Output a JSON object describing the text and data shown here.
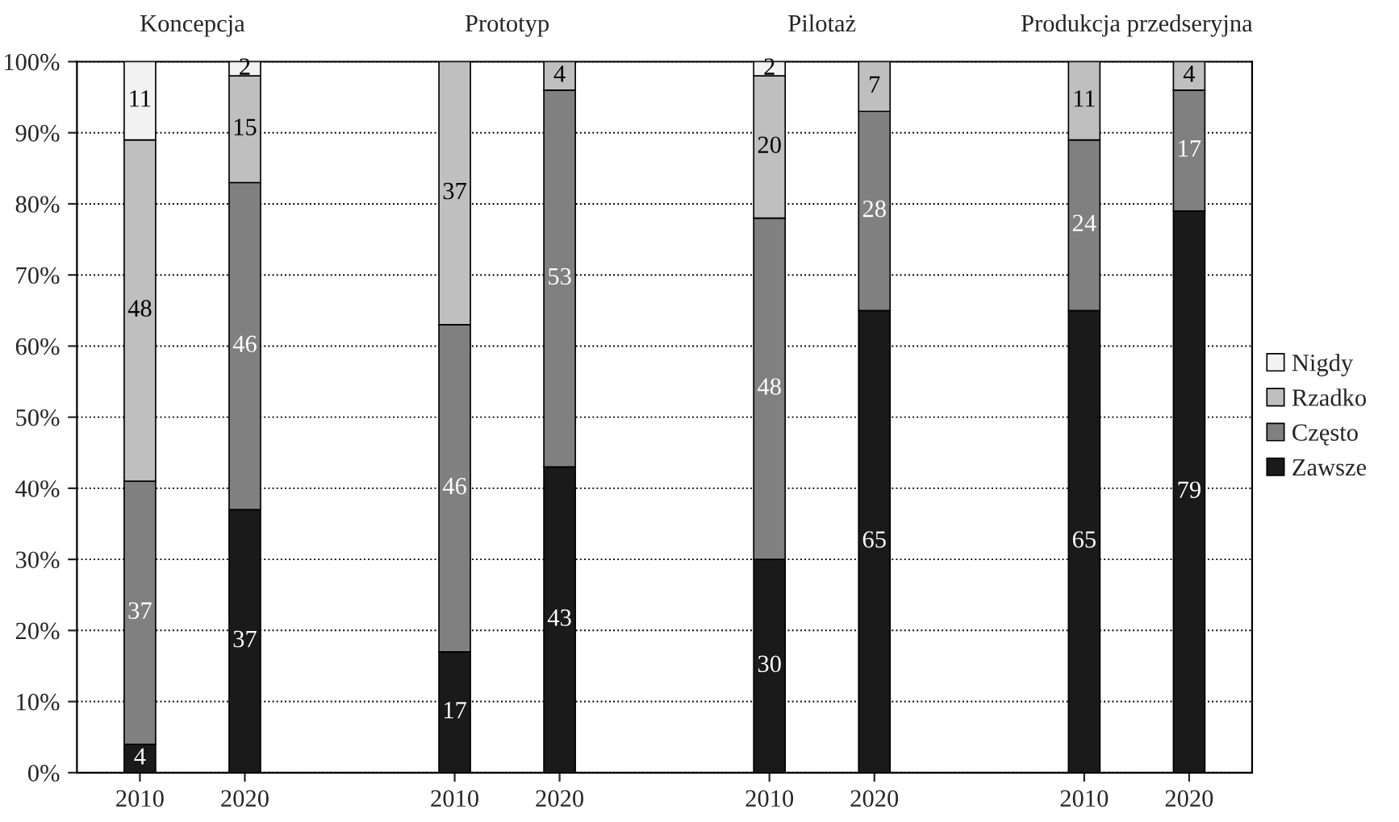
{
  "chart_data": {
    "type": "bar",
    "stacked": true,
    "data_labels": true,
    "grid": "y",
    "legend": "right",
    "categories": [
      "2010",
      "2020",
      null,
      "2010",
      "2020",
      null,
      "2010",
      "2020",
      null,
      "2010",
      "2020"
    ],
    "annotations": [
      "Koncepcja",
      "Prototyp",
      "Pilotaż",
      "Produkcja przedseryjna"
    ],
    "ylim": [
      0,
      100
    ],
    "yticks": [
      {
        "value": 0,
        "label": "0%"
      },
      {
        "value": 10,
        "label": "10%"
      },
      {
        "value": 20,
        "label": "20%"
      },
      {
        "value": 30,
        "label": "30%"
      },
      {
        "value": 40,
        "label": "40%"
      },
      {
        "value": 50,
        "label": "50%"
      },
      {
        "value": 60,
        "label": "60%"
      },
      {
        "value": 70,
        "label": "70%"
      },
      {
        "value": 80,
        "label": "80%"
      },
      {
        "value": 90,
        "label": "90%"
      },
      {
        "value": 100,
        "label": "100%"
      }
    ],
    "series": [
      {
        "name": "Zawsze",
        "color": "#1a1a1a",
        "values": [
          4,
          37,
          null,
          17,
          43,
          null,
          30,
          65,
          null,
          65,
          79
        ]
      },
      {
        "name": "Często",
        "color": "#808080",
        "values": [
          37,
          46,
          null,
          46,
          53,
          null,
          48,
          28,
          null,
          24,
          17
        ]
      },
      {
        "name": "Rzadko",
        "color": "#bfbfbf",
        "values": [
          48,
          15,
          null,
          37,
          4,
          null,
          20,
          7,
          null,
          11,
          4
        ]
      },
      {
        "name": "Nigdy",
        "color": "#f2f2f2",
        "values": [
          11,
          2,
          null,
          null,
          null,
          null,
          2,
          null,
          null,
          null,
          null
        ]
      }
    ]
  }
}
